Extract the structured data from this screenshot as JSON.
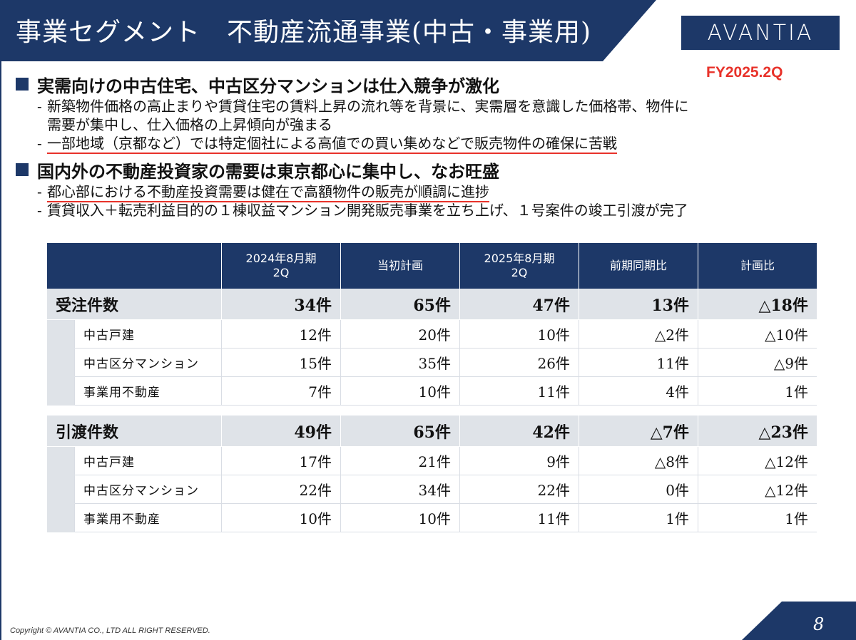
{
  "header": {
    "title": "事業セグメント　不動産流通事業(中古・事業用)",
    "logo_text": "AVANTIA",
    "period": "FY2025.2Q"
  },
  "bullets": [
    {
      "heading": "実需向けの中古住宅、中古区分マンションは仕入競争が激化",
      "items": [
        {
          "dash": "-",
          "line1": "新築物件価格の高止まりや賃貸住宅の賃料上昇の流れ等を背景に、実需層を意識した価格帯、物件に",
          "line2": "需要が集中し、仕入価格の上昇傾向が強まる"
        },
        {
          "dash": "-",
          "line1": "一部地域（京都など）では特定個社による高値での買い集めなどで販売物件の確保に苦戦"
        }
      ]
    },
    {
      "heading": "国内外の不動産投資家の需要は東京都心に集中し、なお旺盛",
      "items": [
        {
          "dash": "-",
          "line1": "都心部における不動産投資需要は健在で高額物件の販売が順調に進捗"
        },
        {
          "dash": "-",
          "line1": "賃貸収入＋転売利益目的の１棟収益マンション開発販売事業を立ち上げ、１号案件の竣工引渡が完了"
        }
      ]
    }
  ],
  "table": {
    "headers": [
      "2024年8月期\n2Q",
      "当初計画",
      "2025年8月期\n2Q",
      "前期同期比",
      "計画比"
    ],
    "header_lines": [
      [
        "2024年8月期",
        "2Q"
      ],
      [
        "当初計画"
      ],
      [
        "2025年8月期",
        "2Q"
      ],
      [
        "前期同期比"
      ],
      [
        "計画比"
      ]
    ],
    "groups": [
      {
        "label": "受注件数",
        "values": [
          "34件",
          "65件",
          "47件",
          "13件",
          "△18件"
        ],
        "rows": [
          {
            "label": "中古戸建",
            "values": [
              "12件",
              "20件",
              "10件",
              "△2件",
              "△10件"
            ]
          },
          {
            "label": "中古区分マンション",
            "values": [
              "15件",
              "35件",
              "26件",
              "11件",
              "△9件"
            ]
          },
          {
            "label": "事業用不動産",
            "values": [
              "7件",
              "10件",
              "11件",
              "4件",
              "1件"
            ]
          }
        ]
      },
      {
        "label": "引渡件数",
        "values": [
          "49件",
          "65件",
          "42件",
          "△7件",
          "△23件"
        ],
        "rows": [
          {
            "label": "中古戸建",
            "values": [
              "17件",
              "21件",
              "9件",
              "△8件",
              "△12件"
            ]
          },
          {
            "label": "中古区分マンション",
            "values": [
              "22件",
              "34件",
              "22件",
              "0件",
              "△12件"
            ]
          },
          {
            "label": "事業用不動産",
            "values": [
              "10件",
              "10件",
              "11件",
              "1件",
              "1件"
            ]
          }
        ]
      }
    ]
  },
  "footer": {
    "copyright": "Copyright © AVANTIA CO., LTD ALL RIGHT RESERVED.",
    "page": "8"
  },
  "colors": {
    "navy": "#1d3868",
    "accent_red": "#e8322a",
    "row_gray": "#dfe3e8"
  }
}
